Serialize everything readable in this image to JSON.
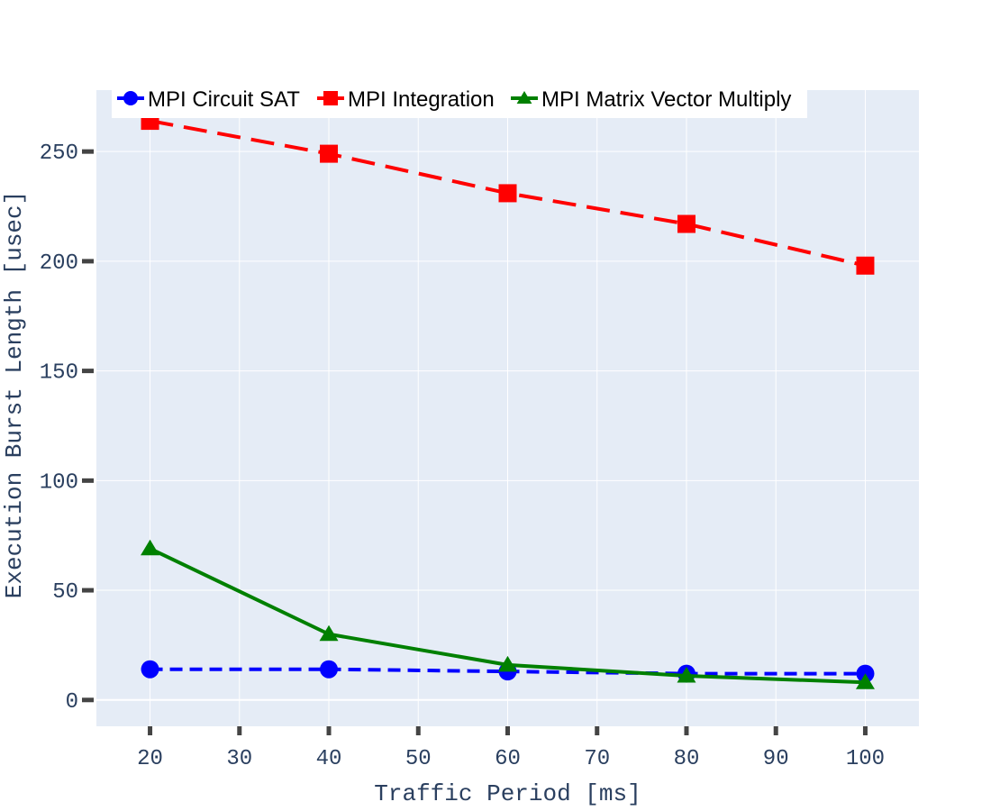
{
  "chart_data": {
    "type": "line",
    "title": "",
    "xlabel": "Traffic Period [ms]",
    "ylabel": "Execution Burst Length [usec]",
    "x": [
      20,
      40,
      60,
      80,
      100
    ],
    "xlim": [
      14,
      106
    ],
    "ylim": [
      -12,
      278
    ],
    "x_ticks": [
      20,
      30,
      40,
      50,
      60,
      70,
      80,
      90,
      100
    ],
    "y_ticks": [
      0,
      50,
      100,
      150,
      200,
      250
    ],
    "grid": true,
    "legend_position": "top",
    "series": [
      {
        "name": "MPI Circuit SAT",
        "values": [
          14,
          14,
          13,
          12,
          12
        ],
        "color": "#0000ff",
        "line_style": "dash",
        "marker": "circle"
      },
      {
        "name": "MPI Integration",
        "values": [
          264,
          249,
          231,
          217,
          198
        ],
        "color": "#ff0000",
        "line_style": "longdash",
        "marker": "square"
      },
      {
        "name": "MPI Matrix Vector Multiply",
        "values": [
          69,
          30,
          16,
          11,
          8
        ],
        "color": "#008000",
        "line_style": "solid",
        "marker": "triangle"
      }
    ]
  },
  "colors": {
    "plot_background": "#e5ecf6",
    "grid": "#ffffff",
    "axis_text": "#2a3f5f"
  }
}
